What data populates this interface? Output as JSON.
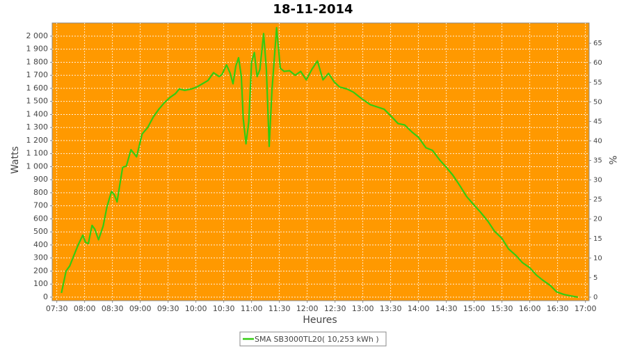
{
  "chart_data": {
    "type": "line",
    "title": "18-11-2014",
    "xlabel": "Heures",
    "ylabel": "Watts",
    "y2label": "%",
    "x": [
      "07:35",
      "07:40",
      "07:44",
      "07:49",
      "07:53",
      "07:58",
      "08:01",
      "08:04",
      "08:08",
      "08:11",
      "08:15",
      "08:20",
      "08:24",
      "08:29",
      "08:32",
      "08:35",
      "08:38",
      "08:41",
      "08:45",
      "08:50",
      "08:56",
      "09:02",
      "09:08",
      "09:14",
      "09:20",
      "09:26",
      "09:32",
      "09:38",
      "09:42",
      "09:48",
      "09:55",
      "10:01",
      "10:07",
      "10:13",
      "10:19",
      "10:25",
      "10:28",
      "10:33",
      "10:37",
      "10:40",
      "10:43",
      "10:46",
      "10:49",
      "10:51",
      "10:54",
      "10:57",
      "11:00",
      "11:03",
      "11:06",
      "11:09",
      "11:13",
      "11:16",
      "11:19",
      "11:22",
      "11:27",
      "11:31",
      "11:35",
      "11:41",
      "11:47",
      "11:53",
      "11:59",
      "12:05",
      "12:11",
      "12:17",
      "12:23",
      "12:29",
      "12:35",
      "12:43",
      "12:50",
      "12:58",
      "13:08",
      "13:23",
      "13:30",
      "13:38",
      "13:45",
      "13:53",
      "14:00",
      "14:08",
      "14:15",
      "14:23",
      "14:30",
      "14:37",
      "14:45",
      "14:52",
      "15:00",
      "15:07",
      "15:15",
      "15:22",
      "15:30",
      "15:37",
      "15:45",
      "15:52",
      "16:00",
      "16:07",
      "16:14",
      "16:22",
      "16:29",
      "16:37",
      "16:44",
      "16:52"
    ],
    "series": [
      {
        "name": "SMA SB3000TL20( 10,253 kWh )",
        "color": "#33cc11",
        "values": [
          32,
          200,
          240,
          330,
          400,
          475,
          420,
          410,
          550,
          520,
          440,
          545,
          690,
          810,
          785,
          730,
          865,
          995,
          1005,
          1130,
          1075,
          1250,
          1300,
          1380,
          1440,
          1490,
          1530,
          1560,
          1595,
          1585,
          1595,
          1610,
          1635,
          1660,
          1720,
          1690,
          1705,
          1780,
          1715,
          1635,
          1770,
          1835,
          1690,
          1370,
          1175,
          1345,
          1800,
          1875,
          1690,
          1745,
          2020,
          1745,
          1155,
          1585,
          2065,
          1755,
          1730,
          1735,
          1700,
          1730,
          1665,
          1745,
          1810,
          1665,
          1715,
          1650,
          1610,
          1595,
          1570,
          1525,
          1475,
          1440,
          1390,
          1330,
          1320,
          1265,
          1225,
          1145,
          1125,
          1050,
          995,
          935,
          850,
          770,
          705,
          650,
          580,
          505,
          450,
          370,
          320,
          265,
          225,
          170,
          130,
          90,
          40,
          20,
          10,
          0
        ]
      }
    ],
    "xlim": [
      "07:25",
      "17:04"
    ],
    "xticks": [
      "07:30",
      "08:00",
      "08:30",
      "09:00",
      "09:30",
      "10:00",
      "10:30",
      "11:00",
      "11:30",
      "12:00",
      "12:30",
      "13:00",
      "13:30",
      "14:00",
      "14:30",
      "15:00",
      "15:30",
      "16:00",
      "16:30",
      "17:00"
    ],
    "ylim": [
      -27,
      2101
    ],
    "yticks": [
      0,
      100,
      200,
      300,
      400,
      500,
      600,
      700,
      800,
      900,
      {
        "value": 1000,
        "label": "1 000"
      },
      {
        "value": 1100,
        "label": "1 100"
      },
      {
        "value": 1200,
        "label": "1 200"
      },
      {
        "value": 1300,
        "label": "1 300"
      },
      {
        "value": 1400,
        "label": "1 400"
      },
      {
        "value": 1500,
        "label": "1 500"
      },
      {
        "value": 1600,
        "label": "1 600"
      },
      {
        "value": 1700,
        "label": "1 700"
      },
      {
        "value": 1800,
        "label": "1 800"
      },
      {
        "value": 1900,
        "label": "1 900"
      },
      {
        "value": 2000,
        "label": "2 000"
      }
    ],
    "y2lim": [
      -0.9,
      70.2
    ],
    "y2ticks": [
      0,
      5,
      10,
      15,
      20,
      25,
      30,
      35,
      40,
      45,
      50,
      55,
      60,
      65
    ],
    "grid": true,
    "background": "#ff9900",
    "legend": "bottom"
  }
}
